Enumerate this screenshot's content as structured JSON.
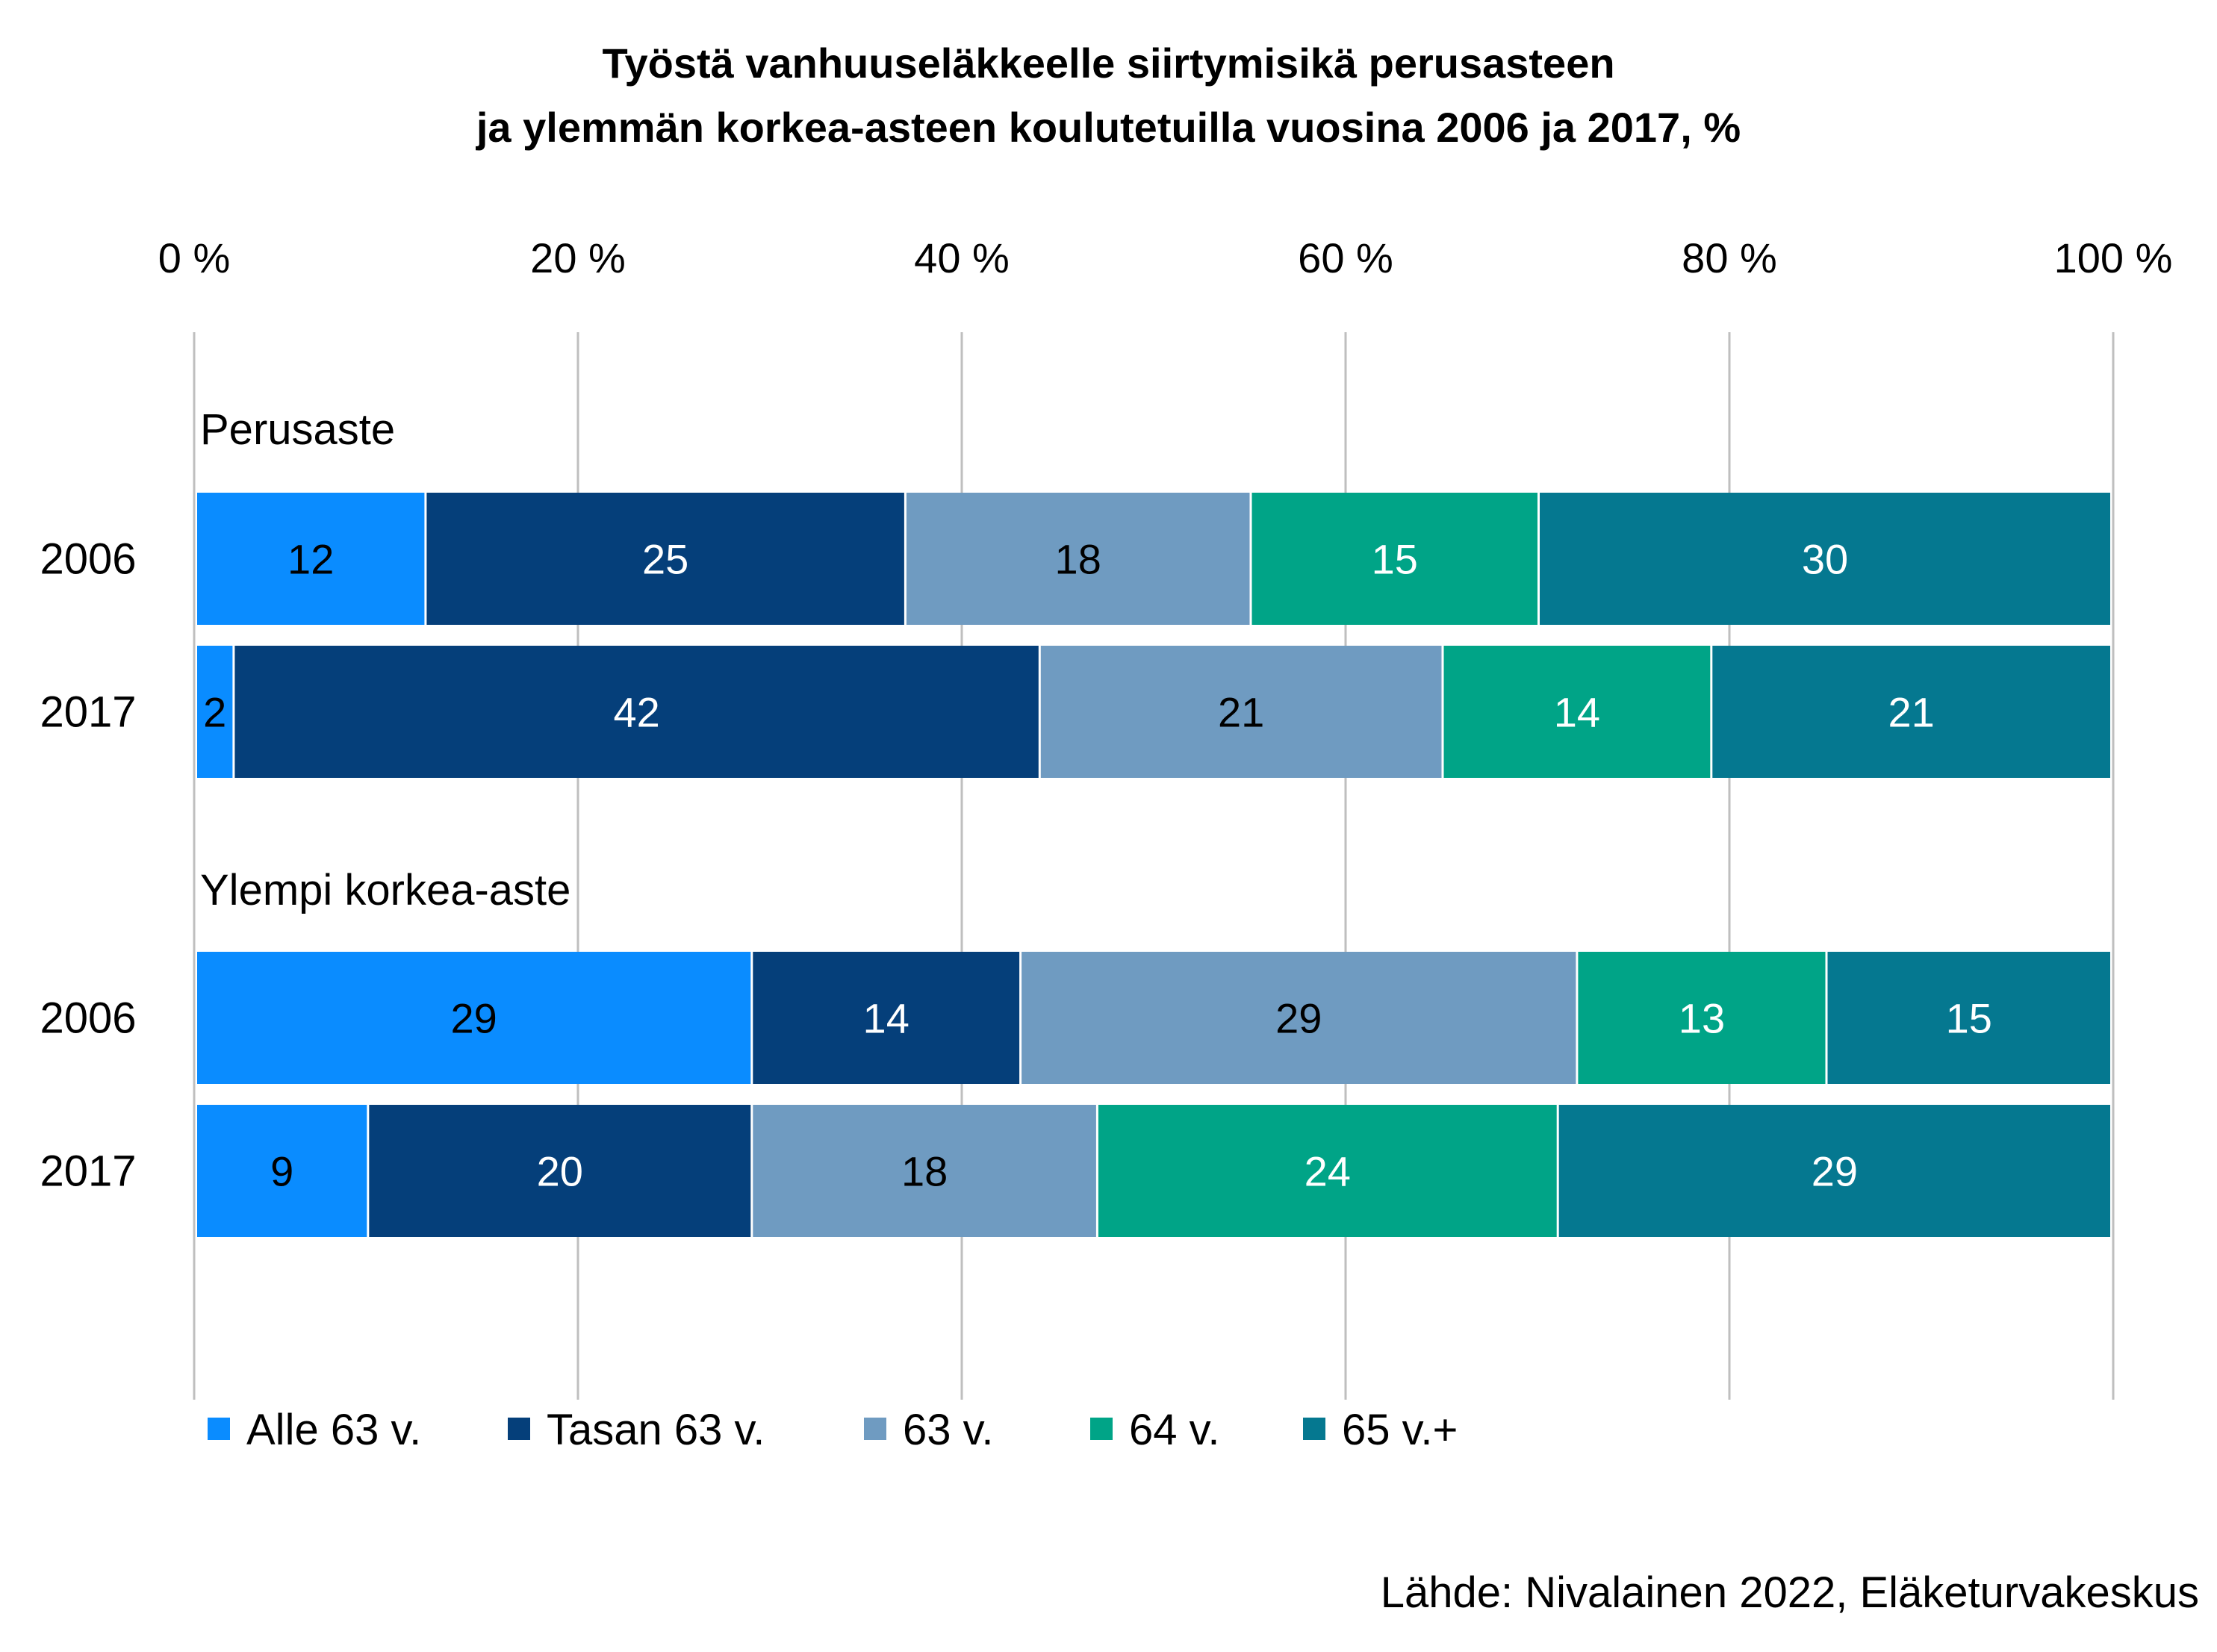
{
  "chart_data": {
    "type": "bar",
    "orientation": "horizontal",
    "stacked": "percent",
    "title_lines": [
      "Työstä vanhuuseläkkeelle siirtymisikä perusasteen",
      "ja ylemmän korkea-asteen koulutetuilla vuosina 2006 ja 2017, %"
    ],
    "x_ticks": [
      "0 %",
      "20 %",
      "40 %",
      "60 %",
      "80 %",
      "100 %"
    ],
    "xlim": [
      0,
      100
    ],
    "grid": true,
    "axis_position": "top",
    "legend_position": "bottom",
    "groups": [
      {
        "label": "Perusaste",
        "rows": [
          {
            "label": "2006",
            "values": [
              12,
              25,
              18,
              15,
              30
            ]
          },
          {
            "label": "2017",
            "values": [
              2,
              42,
              21,
              14,
              21
            ]
          }
        ]
      },
      {
        "label": "Ylempi korkea-aste",
        "rows": [
          {
            "label": "2006",
            "values": [
              29,
              14,
              29,
              13,
              15
            ]
          },
          {
            "label": "2017",
            "values": [
              9,
              20,
              18,
              24,
              29
            ]
          }
        ]
      }
    ],
    "series": [
      {
        "name": "Alle 63 v.",
        "color": "#0a8cff",
        "label_color": "#000000"
      },
      {
        "name": "Tasan 63 v.",
        "color": "#053f7a",
        "label_color": "#ffffff"
      },
      {
        "name": "63 v.",
        "color": "#6f9bc1",
        "label_color": "#000000"
      },
      {
        "name": "64 v.",
        "color": "#00a487",
        "label_color": "#ffffff"
      },
      {
        "name": "65 v.+",
        "color": "#057890",
        "label_color": "#ffffff"
      }
    ]
  },
  "source": "Lähde: Nivalainen 2022, Eläketurvakeskus"
}
